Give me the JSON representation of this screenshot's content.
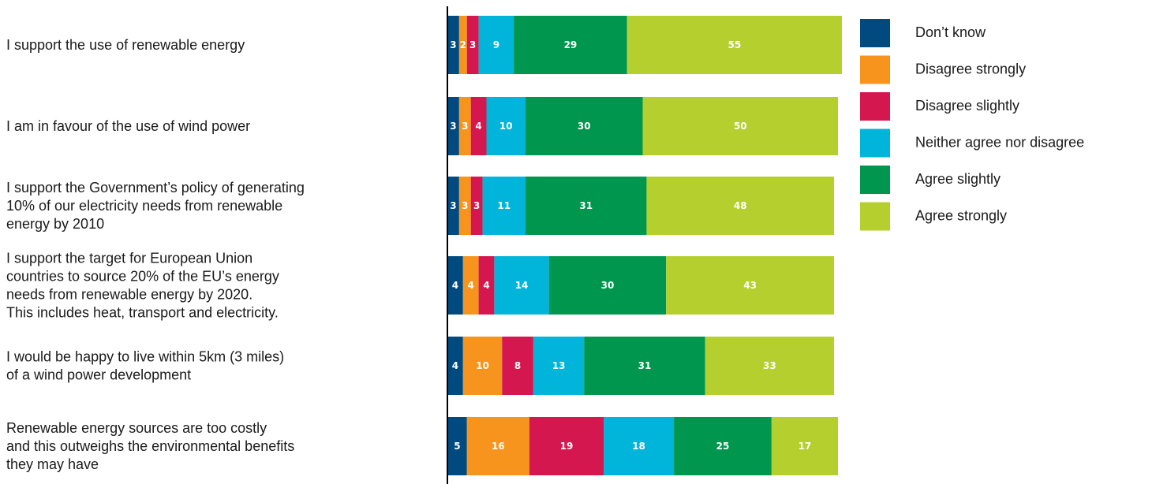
{
  "chart_data": {
    "type": "bar",
    "orientation": "horizontal",
    "stacked": true,
    "categories": [
      [
        "I support the use of renewable energy"
      ],
      [
        "I am in favour of the use of wind power"
      ],
      [
        "I support the Government’s policy of generating",
        "10% of our electricity needs from renewable",
        "energy by 2010"
      ],
      [
        "I support the target for European Union",
        "countries to source 20% of the EU’s energy",
        "needs from renewable energy by 2020.",
        "This includes heat, transport and electricity."
      ],
      [
        "I would be happy to live within 5km (3 miles)",
        "of a wind power development"
      ],
      [
        "Renewable energy sources are too costly",
        "and this outweighs the environmental benefits",
        "they may have"
      ]
    ],
    "series": [
      {
        "name": "Don’t know",
        "color": "#004a7f",
        "values": [
          3,
          3,
          3,
          4,
          4,
          5
        ]
      },
      {
        "name": "Disagree strongly",
        "color": "#f7941d",
        "values": [
          2,
          3,
          3,
          4,
          10,
          16
        ]
      },
      {
        "name": "Disagree slightly",
        "color": "#d5174f",
        "values": [
          3,
          4,
          3,
          4,
          8,
          19
        ]
      },
      {
        "name": "Neither agree nor disagree",
        "color": "#00b5d9",
        "values": [
          9,
          10,
          11,
          14,
          13,
          18
        ]
      },
      {
        "name": "Agree slightly",
        "color": "#00964e",
        "values": [
          29,
          30,
          31,
          30,
          31,
          25
        ]
      },
      {
        "name": "Agree strongly",
        "color": "#b5cf2f",
        "values": [
          55,
          50,
          48,
          43,
          33,
          17
        ]
      }
    ],
    "legend_position": "right",
    "grid": false,
    "data_labels": true
  }
}
